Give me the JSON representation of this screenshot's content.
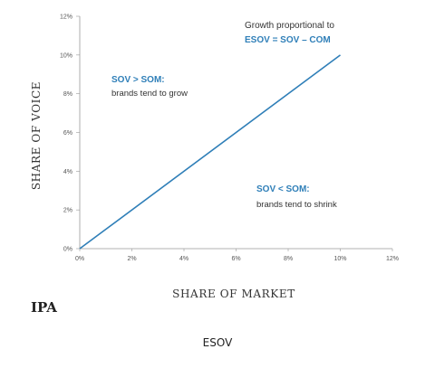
{
  "chart_data": {
    "type": "line",
    "xlabel": "SHARE OF MARKET",
    "ylabel": "SHARE OF VOICE",
    "xlim": [
      0,
      12
    ],
    "ylim": [
      0,
      12
    ],
    "x_ticks": [
      "0%",
      "2%",
      "4%",
      "6%",
      "8%",
      "10%",
      "12%"
    ],
    "y_ticks": [
      "0%",
      "2%",
      "4%",
      "6%",
      "8%",
      "10%",
      "12%"
    ],
    "series": [
      {
        "x": [
          0,
          10
        ],
        "y": [
          0,
          10
        ],
        "color": "#2f7fb8"
      }
    ],
    "annotations": {
      "top_right": {
        "line1": "Growth proportional to",
        "line2": "ESOV = SOV – COM"
      },
      "upper_left": {
        "head": "SOV > SOM:",
        "body": "brands tend to grow"
      },
      "lower_right": {
        "head": "SOV < SOM:",
        "body": "brands tend to shrink"
      }
    },
    "grid": false
  },
  "logo": "IPA",
  "caption": "ESOV",
  "colors": {
    "accent": "#2f7fb8",
    "text": "#333333",
    "axis": "#999999"
  }
}
